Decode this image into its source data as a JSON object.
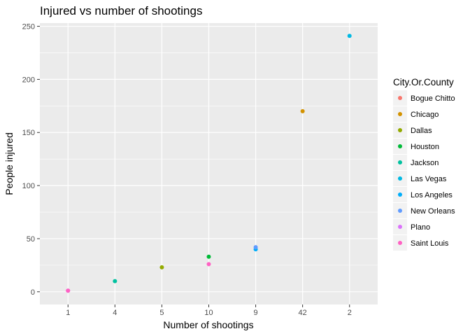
{
  "chart_data": {
    "type": "scatter",
    "title": "Injured vs number of shootings",
    "xlabel": "Number of shootings",
    "ylabel": "People injured",
    "x_categories": [
      "1",
      "4",
      "5",
      "10",
      "9",
      "42",
      "2"
    ],
    "ylim": [
      -12,
      253
    ],
    "yticks": [
      0,
      50,
      100,
      150,
      200,
      250
    ],
    "grid": true,
    "legend": {
      "title": "City.Or.County",
      "placement": "right"
    },
    "series": [
      {
        "name": "Bogue Chitto",
        "color": "#F8766D",
        "points": []
      },
      {
        "name": "Chicago",
        "color": "#D39200",
        "points": [
          {
            "x": "42",
            "y": 170
          }
        ]
      },
      {
        "name": "Dallas",
        "color": "#93AA00",
        "points": [
          {
            "x": "5",
            "y": 23
          }
        ]
      },
      {
        "name": "Houston",
        "color": "#00BA38",
        "points": [
          {
            "x": "10",
            "y": 33
          }
        ]
      },
      {
        "name": "Jackson",
        "color": "#00C19F",
        "points": [
          {
            "x": "4",
            "y": 10
          }
        ]
      },
      {
        "name": "Las Vegas",
        "color": "#00B9E3",
        "points": [
          {
            "x": "2",
            "y": 241
          }
        ]
      },
      {
        "name": "Los Angeles",
        "color": "#00ADFA",
        "points": [
          {
            "x": "9",
            "y": 40
          }
        ]
      },
      {
        "name": "New Orleans",
        "color": "#619CFF",
        "points": [
          {
            "x": "9",
            "y": 42
          }
        ]
      },
      {
        "name": "Plano",
        "color": "#DB72FB",
        "points": [
          {
            "x": "1",
            "y": 1
          }
        ]
      },
      {
        "name": "Saint Louis",
        "color": "#FF61C3",
        "points": [
          {
            "x": "1",
            "y": 1
          },
          {
            "x": "10",
            "y": 26
          }
        ]
      }
    ]
  }
}
